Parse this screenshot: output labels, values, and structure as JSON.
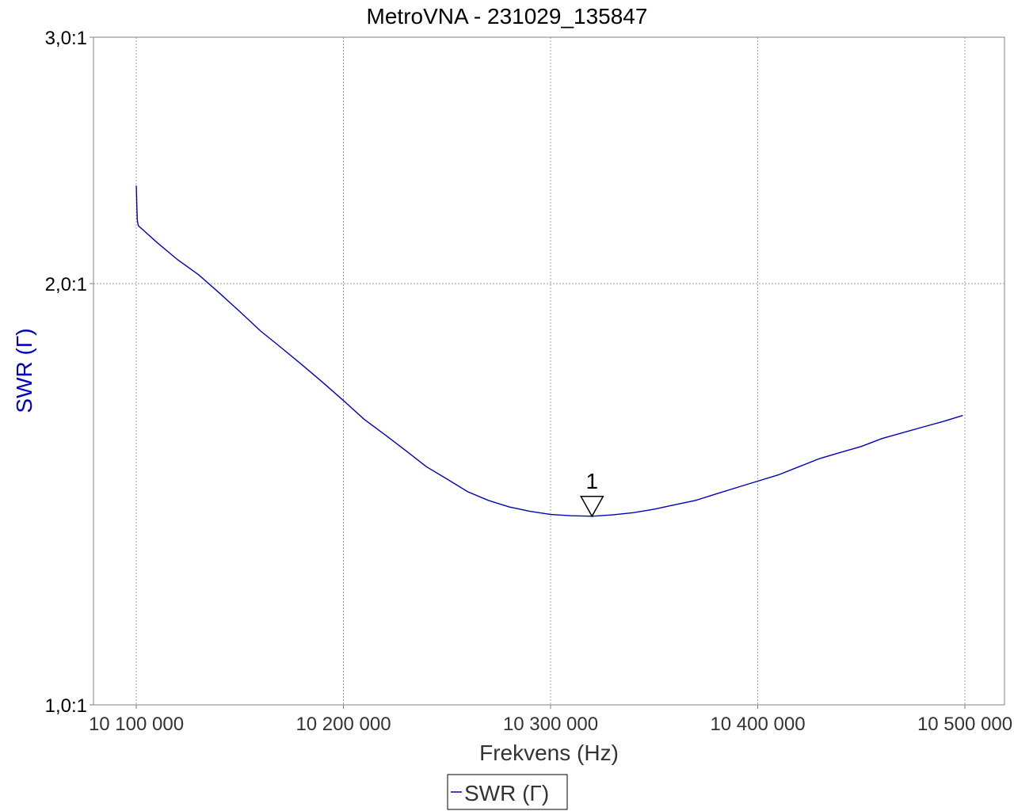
{
  "chart_data": {
    "type": "line",
    "title": "MetroVNA - 231029_135847",
    "xlabel": "Frekvens (Hz)",
    "ylabel": "SWR  (Γ)",
    "x_scale": "linear",
    "y_scale": "log",
    "xlim": [
      10100000,
      10500000
    ],
    "ylim": [
      1.0,
      3.0
    ],
    "grid": true,
    "legend_position": "bottom-center",
    "x_ticks": [
      {
        "value": 10100000,
        "label": "10 100 000"
      },
      {
        "value": 10200000,
        "label": "10 200 000"
      },
      {
        "value": 10300000,
        "label": "10 300 000"
      },
      {
        "value": 10400000,
        "label": "10 400 000"
      },
      {
        "value": 10500000,
        "label": "10 500 000"
      }
    ],
    "y_ticks": [
      {
        "value": 1.0,
        "label": "1,0:1"
      },
      {
        "value": 2.0,
        "label": "2,0:1"
      },
      {
        "value": 3.0,
        "label": "3,0:1"
      }
    ],
    "series": [
      {
        "name": "SWR  (Γ)",
        "color": "#0000c0",
        "x": [
          10100000,
          10100500,
          10101000,
          10104000,
          10110000,
          10120000,
          10130000,
          10140000,
          10150000,
          10160000,
          10170000,
          10180000,
          10190000,
          10200000,
          10210000,
          10220000,
          10230000,
          10240000,
          10250000,
          10260000,
          10270000,
          10280000,
          10290000,
          10300000,
          10310000,
          10320000,
          10330000,
          10340000,
          10350000,
          10360000,
          10370000,
          10380000,
          10390000,
          10400000,
          10410000,
          10420000,
          10430000,
          10440000,
          10450000,
          10460000,
          10470000,
          10480000,
          10490000,
          10499000
        ],
        "values": [
          2.35,
          2.22,
          2.2,
          2.18,
          2.14,
          2.08,
          2.03,
          1.97,
          1.91,
          1.85,
          1.8,
          1.75,
          1.7,
          1.65,
          1.6,
          1.56,
          1.52,
          1.48,
          1.45,
          1.42,
          1.4,
          1.385,
          1.375,
          1.368,
          1.365,
          1.364,
          1.367,
          1.372,
          1.38,
          1.39,
          1.4,
          1.415,
          1.43,
          1.445,
          1.46,
          1.48,
          1.5,
          1.515,
          1.53,
          1.55,
          1.565,
          1.58,
          1.595,
          1.61
        ]
      }
    ],
    "markers": [
      {
        "label": "1",
        "x": 10320000,
        "y": 1.364
      }
    ],
    "legend": [
      {
        "label": "SWR  (Γ)",
        "color": "#0000c0"
      }
    ]
  }
}
